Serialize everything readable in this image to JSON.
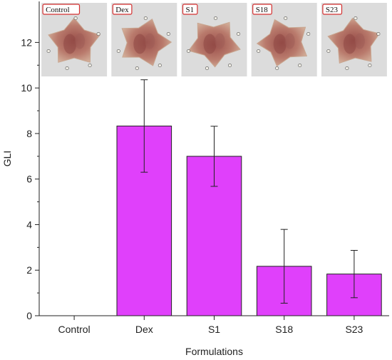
{
  "chart_data": {
    "type": "bar",
    "title": "",
    "xlabel": "Formulations",
    "ylabel": "GLI",
    "categories": [
      "Control",
      "Dex",
      "S1",
      "S18",
      "S23"
    ],
    "values": [
      0,
      8.33,
      7.0,
      2.17,
      1.83
    ],
    "error": [
      0,
      2.03,
      1.32,
      1.62,
      1.04
    ],
    "ylim": [
      0,
      13.8
    ],
    "yticks": [
      "0",
      "2",
      "4",
      "6",
      "8",
      "10",
      "12"
    ],
    "bar_color": "#e040fb",
    "bar_edge_color": "#222222",
    "grid": false,
    "photo_labels": [
      "Control",
      "Dex",
      "S1",
      "S18",
      "S23"
    ]
  }
}
